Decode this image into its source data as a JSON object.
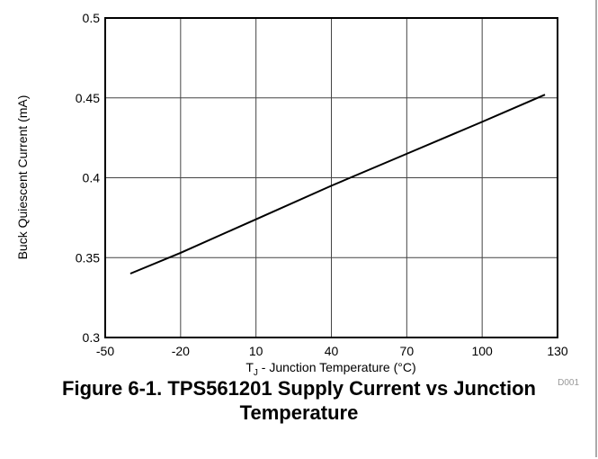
{
  "chart_data": {
    "type": "line",
    "ylabel": "Buck Quiescent Current (mA)",
    "xlabel": [
      "T",
      "J",
      " - Junction Temperature (°C)"
    ],
    "annotation": "D001",
    "caption": "Figure 6-1. TPS561201 Supply Current vs Junction Temperature",
    "x": [
      -40,
      -20,
      10,
      40,
      70,
      100,
      125
    ],
    "series": [
      {
        "name": "Supply Current",
        "color": "#000000",
        "values": [
          0.34,
          0.353,
          0.374,
          0.395,
          0.415,
          0.435,
          0.452
        ]
      }
    ],
    "xlim": [
      -50,
      130
    ],
    "xticks": [
      -50,
      -20,
      10,
      40,
      70,
      100,
      130
    ],
    "ylim": [
      0.3,
      0.5
    ],
    "yticks": [
      0.3,
      0.35,
      0.4,
      0.45,
      0.5
    ],
    "grid": true
  }
}
